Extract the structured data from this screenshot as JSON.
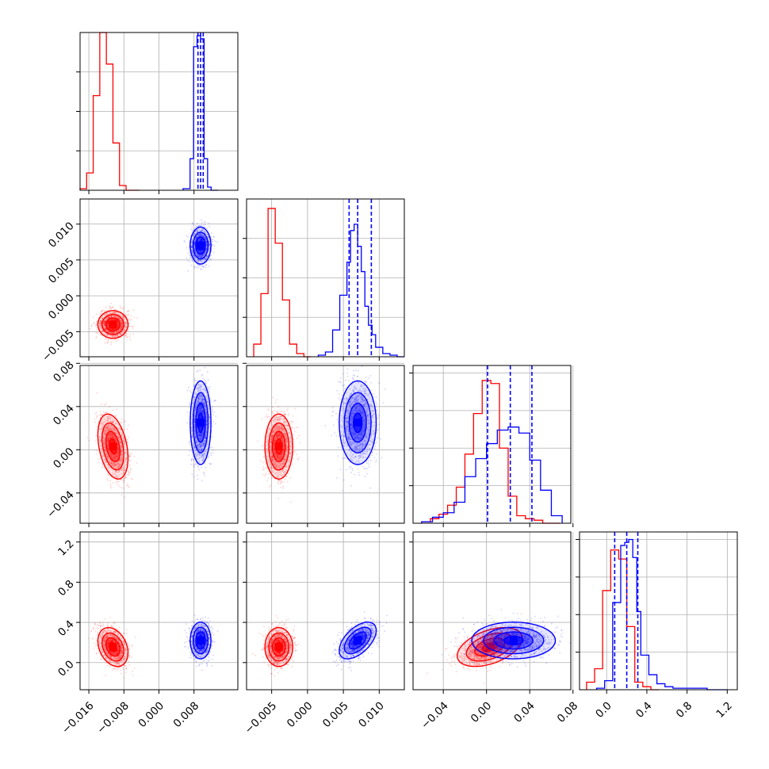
{
  "chart_data": {
    "type": "corner",
    "grid": true,
    "parameters": [
      {
        "range": [
          -0.018,
          0.018
        ],
        "ticks": [
          -0.016,
          -0.008,
          0.0,
          0.008
        ],
        "tick_labels": [
          "−0.016",
          "−0.008",
          "0.000",
          "0.008"
        ],
        "hist_ylim": [
          0,
          1.0
        ],
        "hist_yticks": [
          0.25,
          0.5,
          0.75
        ]
      },
      {
        "range": [
          -0.0085,
          0.0135
        ],
        "ticks": [
          -0.005,
          0.0,
          0.005,
          0.01
        ],
        "tick_labels": [
          "−0.005",
          "0.000",
          "0.005",
          "0.010"
        ],
        "hist_ylim": [
          0,
          1.0
        ],
        "hist_yticks": [
          0.25,
          0.5,
          0.75
        ]
      },
      {
        "range": [
          -0.068,
          0.078
        ],
        "ticks": [
          -0.04,
          0.0,
          0.04,
          0.08
        ],
        "tick_labels": [
          "−0.04",
          "0.00",
          "0.04",
          "0.08"
        ],
        "hist_ylim": [
          0,
          1.05
        ],
        "hist_yticks": [
          0.25,
          0.5,
          0.75,
          1.0
        ]
      },
      {
        "range": [
          -0.27,
          1.3
        ],
        "ticks": [
          0.0,
          0.4,
          0.8,
          1.2
        ],
        "tick_labels": [
          "0.0",
          "0.4",
          "0.8",
          "1.2"
        ],
        "hist_ylim": [
          0,
          1.05
        ],
        "hist_yticks": [
          0.25,
          0.5,
          0.75,
          1.0
        ]
      }
    ],
    "series": [
      {
        "color": "#ff0000",
        "mean": [
          -0.0105,
          -0.004,
          0.003,
          0.155
        ],
        "sd": [
          0.0016,
          0.0009,
          0.014,
          0.09
        ],
        "corr": [
          [
            1,
            0,
            -0.35,
            -0.3
          ],
          [
            0,
            1,
            0,
            0
          ],
          [
            -0.35,
            0,
            1,
            0.45
          ],
          [
            -0.3,
            0,
            0.45,
            1
          ]
        ],
        "histograms": [
          {
            "edges": [
              -0.018,
              -0.0165,
              -0.015,
              -0.0135,
              -0.012,
              -0.0105,
              -0.009,
              -0.0075,
              -0.006,
              -0.0045
            ],
            "counts": [
              0.01,
              0.11,
              0.6,
              1.0,
              0.8,
              0.3,
              0.03,
              0.0,
              0.0
            ]
          },
          {
            "edges": [
              -0.0075,
              -0.0065,
              -0.0055,
              -0.0045,
              -0.0035,
              -0.0025,
              -0.0015,
              -0.0005,
              0.0005
            ],
            "counts": [
              0.08,
              0.4,
              0.94,
              0.72,
              0.36,
              0.08,
              0.02,
              0.0
            ]
          },
          {
            "edges": [
              -0.06,
              -0.052,
              -0.044,
              -0.036,
              -0.028,
              -0.02,
              -0.012,
              -0.004,
              0.004,
              0.012,
              0.02,
              0.028,
              0.036,
              0.044,
              0.052,
              0.06,
              0.068
            ],
            "counts": [
              0.01,
              0.03,
              0.06,
              0.12,
              0.24,
              0.46,
              0.73,
              0.95,
              0.93,
              0.5,
              0.18,
              0.05,
              0.03,
              0.02,
              0.0,
              0.0
            ]
          },
          {
            "edges": [
              -0.2,
              -0.12,
              -0.04,
              0.04,
              0.12,
              0.2,
              0.28,
              0.36,
              0.44,
              0.52
            ],
            "counts": [
              0.05,
              0.14,
              0.66,
              0.93,
              0.87,
              0.42,
              0.05,
              0.02,
              0.0
            ]
          }
        ]
      },
      {
        "color": "#0000ff",
        "mean": [
          0.0095,
          0.007,
          0.025,
          0.22
        ],
        "sd": [
          0.0011,
          0.0012,
          0.018,
          0.085
        ],
        "corr": [
          [
            1,
            0,
            0,
            0
          ],
          [
            0,
            1,
            0,
            0.55
          ],
          [
            0,
            0,
            1,
            0
          ],
          [
            0,
            0.55,
            0,
            1
          ]
        ],
        "quantiles": [
          [
            0.0089,
            0.0095,
            0.0101
          ],
          [
            0.0058,
            0.007,
            0.0089
          ],
          [
            0.001,
            0.022,
            0.042
          ],
          [
            0.08,
            0.2,
            0.31
          ]
        ],
        "histograms": [
          {
            "edges": [
              0.0055,
              0.0071,
              0.0079,
              0.0087,
              0.0095,
              0.0103,
              0.0111,
              0.0119,
              0.0135
            ],
            "counts": [
              0.01,
              0.2,
              0.91,
              0.98,
              0.96,
              0.2,
              0.02,
              0.0
            ]
          },
          {
            "edges": [
              0.0015,
              0.0025,
              0.0035,
              0.0045,
              0.0055,
              0.006,
              0.0065,
              0.007,
              0.0075,
              0.008,
              0.0085,
              0.009,
              0.0095,
              0.0105,
              0.0115,
              0.0125,
              0.0135
            ],
            "counts": [
              0.01,
              0.03,
              0.17,
              0.39,
              0.6,
              0.8,
              0.84,
              0.7,
              0.54,
              0.32,
              0.2,
              0.14,
              0.06,
              0.02,
              0.01,
              0.0
            ]
          },
          {
            "edges": [
              -0.06,
              -0.05,
              -0.04,
              -0.03,
              -0.02,
              -0.01,
              0.0,
              0.01,
              0.02,
              0.03,
              0.04,
              0.05,
              0.06,
              0.07
            ],
            "counts": [
              0.01,
              0.04,
              0.07,
              0.14,
              0.31,
              0.43,
              0.53,
              0.62,
              0.64,
              0.6,
              0.42,
              0.22,
              0.05
            ]
          },
          {
            "edges": [
              -0.1,
              -0.02,
              0.06,
              0.14,
              0.18,
              0.22,
              0.26,
              0.3,
              0.34,
              0.42,
              0.5,
              0.58,
              0.66,
              0.74,
              0.82,
              1.0,
              1.2
            ],
            "counts": [
              0.01,
              0.06,
              0.58,
              0.96,
              0.98,
              1.0,
              0.88,
              0.52,
              0.23,
              0.1,
              0.04,
              0.02,
              0.01,
              0.01,
              0.01,
              0.0
            ]
          }
        ]
      }
    ]
  }
}
